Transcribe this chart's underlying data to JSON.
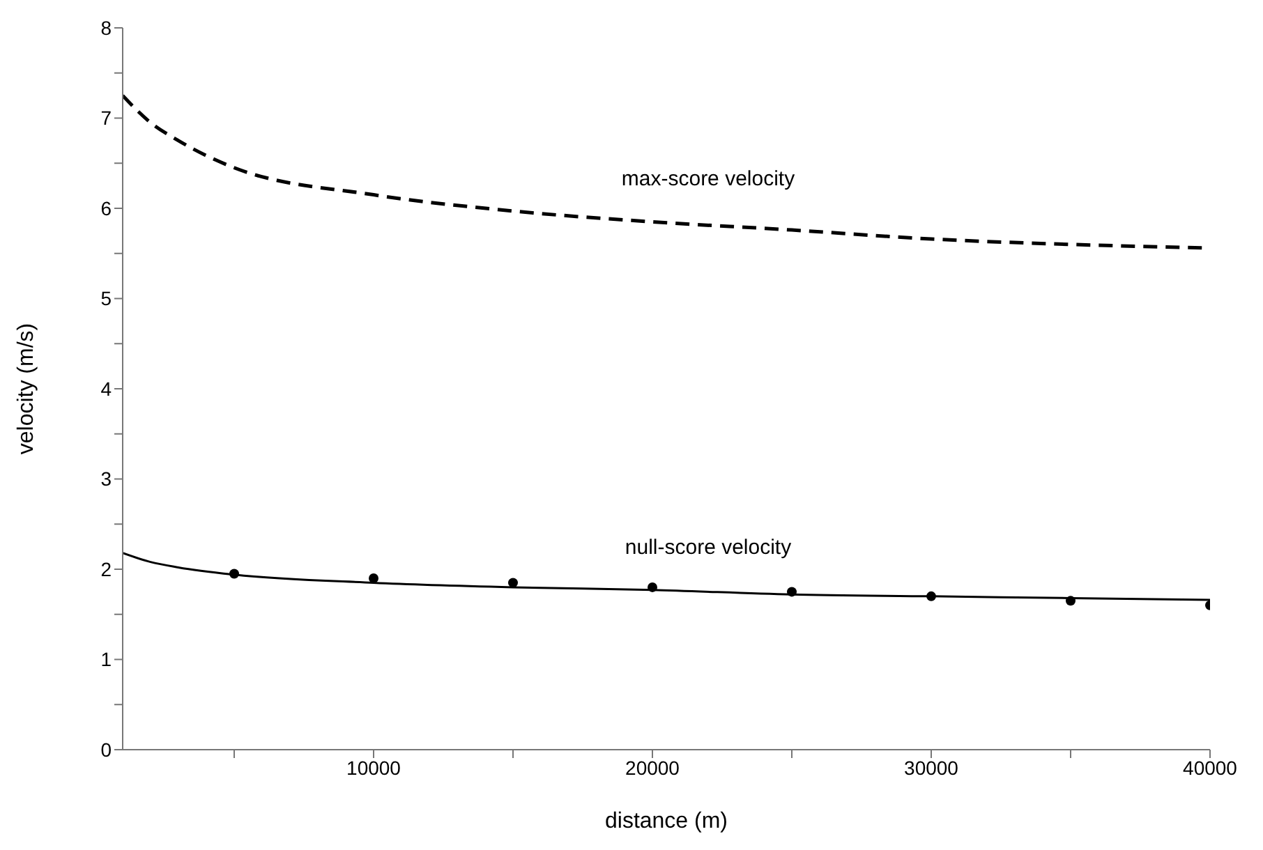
{
  "chart_data": {
    "type": "line",
    "xlabel": "distance (m)",
    "ylabel": "velocity (m/s)",
    "xlim": [
      1000,
      40000
    ],
    "ylim": [
      0,
      8
    ],
    "xticks": [
      {
        "value": 5000,
        "label": null
      },
      10000,
      {
        "value": 15000,
        "label": null
      },
      20000,
      {
        "value": 25000,
        "label": null
      },
      30000,
      {
        "value": 35000,
        "label": null
      },
      40000
    ],
    "yticks": [
      0,
      {
        "value": 0.5,
        "label": null
      },
      1,
      {
        "value": 1.5,
        "label": null
      },
      2,
      {
        "value": 2.5,
        "label": null
      },
      3,
      {
        "value": 3.5,
        "label": null
      },
      4,
      {
        "value": 4.5,
        "label": null
      },
      5,
      {
        "value": 5.5,
        "label": null
      },
      6,
      {
        "value": 6.5,
        "label": null
      },
      7,
      {
        "value": 7.5,
        "label": null
      },
      8
    ],
    "grid": false,
    "series": [
      {
        "name": "max-score velocity",
        "color": "#000000",
        "line_style": "dashed",
        "marker": "none",
        "x": [
          1000,
          2000,
          3000,
          5000,
          10000,
          15000,
          20000,
          25000,
          30000,
          35000,
          40000
        ],
        "values": [
          7.25,
          6.95,
          6.75,
          6.45,
          6.15,
          5.97,
          5.85,
          5.76,
          5.66,
          5.6,
          5.56
        ]
      },
      {
        "name": "null-score velocity",
        "color": "#000000",
        "line_style": "solid",
        "marker": "none",
        "x": [
          1000,
          2000,
          3000,
          5000,
          10000,
          15000,
          20000,
          25000,
          30000,
          35000,
          40000
        ],
        "values": [
          2.18,
          2.08,
          2.02,
          1.94,
          1.85,
          1.8,
          1.77,
          1.72,
          1.7,
          1.68,
          1.66
        ]
      },
      {
        "type": "scatter",
        "color": "#000000",
        "marker": "circle",
        "x": [
          5000,
          10000,
          15000,
          20000,
          25000,
          30000,
          35000,
          40000
        ],
        "values": [
          1.95,
          1.9,
          1.85,
          1.8,
          1.75,
          1.7,
          1.65,
          1.6
        ]
      }
    ]
  }
}
